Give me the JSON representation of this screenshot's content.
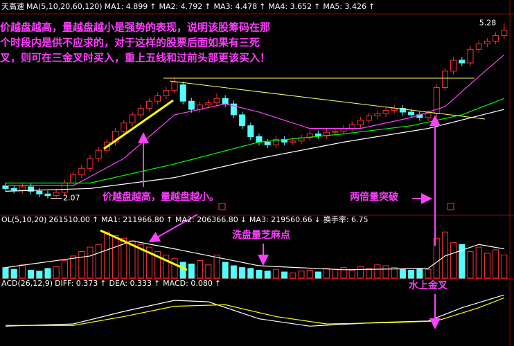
{
  "header": {
    "items": [
      {
        "text": "天高速",
        "color": "#ffffff"
      },
      {
        "text": "MA(5,10,20,60,120)",
        "color": "#ffffff"
      },
      {
        "text": "MA1: 4.899",
        "color": "#ffffff"
      },
      {
        "text": "↑",
        "color": "#ff3232"
      },
      {
        "text": "MA2: 4.792",
        "color": "#ffff00"
      },
      {
        "text": "↑",
        "color": "#ff3232"
      },
      {
        "text": "MA3: 4.478",
        "color": "#ff40ff"
      },
      {
        "text": "↑",
        "color": "#ff3232"
      },
      {
        "text": "MA4: 3.652",
        "color": "#00ff00"
      },
      {
        "text": "↑",
        "color": "#ff3232"
      },
      {
        "text": "MA5: 3.426",
        "color": "#ffffff"
      },
      {
        "text": "↑",
        "color": "#ff3232"
      }
    ]
  },
  "volume_header": {
    "items": [
      {
        "text": "OL(5,10,20)",
        "color": "#ffffff"
      },
      {
        "text": "261510.00",
        "color": "#ffffff"
      },
      {
        "text": "↑",
        "color": "#ff3232"
      },
      {
        "text": "MA1: 211966.80",
        "color": "#ffffff"
      },
      {
        "text": "↑",
        "color": "#ff3232"
      },
      {
        "text": "MA2: 206366.80",
        "color": "#ffff00"
      },
      {
        "text": "↓",
        "color": "#00ff00"
      },
      {
        "text": "MA3: 219560.66",
        "color": "#ff40ff"
      },
      {
        "text": "↓",
        "color": "#00ff00"
      },
      {
        "text": "换手率: 6.75",
        "color": "#ffffff"
      }
    ]
  },
  "macd_header": {
    "items": [
      {
        "text": "ACD(26,12,9)",
        "color": "#ffffff"
      },
      {
        "text": "DIFF: 0.373",
        "color": "#ffffff"
      },
      {
        "text": "↑",
        "color": "#ff3232"
      },
      {
        "text": "DEA: 0.333",
        "color": "#ffff00"
      },
      {
        "text": "↑",
        "color": "#ff3232"
      },
      {
        "text": "MACD: 0.080",
        "color": "#ff40ff"
      },
      {
        "text": "↑",
        "color": "#ff3232"
      }
    ]
  },
  "note": [
    "价越盘越高，量越盘越小是强势的表现，说明该股筹码在那",
    "个时段内是供不应求的，对于这样的股票后面如果有三死",
    "叉，则可在三金叉时买入，重上五线和过前头部更该买入！"
  ],
  "annotations": [
    "价越盘越高，量越盘越小。",
    "两倍量突破",
    "洗盘量芝麻点",
    "水上金叉"
  ],
  "chart_data": [
    {
      "type": "candlestick",
      "ylim": [
        1.9,
        5.45
      ],
      "up_color": "#ff3232",
      "down_color": "#54fcfc",
      "open": [
        2.3,
        2.25,
        2.22,
        2.28,
        2.2,
        2.15,
        2.12,
        2.18,
        2.35,
        2.5,
        2.62,
        2.8,
        2.95,
        3.1,
        3.3,
        3.45,
        3.6,
        3.72,
        3.85,
        3.95,
        4.05,
        4.15,
        3.85,
        3.7,
        3.78,
        3.82,
        3.9,
        3.8,
        3.6,
        3.4,
        3.2,
        3.1,
        3.05,
        3.15,
        3.1,
        3.12,
        3.18,
        3.25,
        3.22,
        3.28,
        3.3,
        3.35,
        3.42,
        3.5,
        3.58,
        3.62,
        3.68,
        3.72,
        3.65,
        3.6,
        3.55,
        3.62,
        4.1,
        4.4,
        4.6,
        4.55,
        4.8,
        4.9,
        4.95,
        5.05
      ],
      "high": [
        2.36,
        2.31,
        2.34,
        2.34,
        2.26,
        2.21,
        2.24,
        2.41,
        2.56,
        2.68,
        2.86,
        3.01,
        3.16,
        3.36,
        3.51,
        3.66,
        3.78,
        3.91,
        4.01,
        4.11,
        4.29,
        4.21,
        3.91,
        3.84,
        3.88,
        3.99,
        3.96,
        3.86,
        3.66,
        3.46,
        3.26,
        3.16,
        3.21,
        3.21,
        3.18,
        3.24,
        3.31,
        3.31,
        3.34,
        3.36,
        3.41,
        3.48,
        3.56,
        3.64,
        3.68,
        3.74,
        3.78,
        3.78,
        3.71,
        3.66,
        3.68,
        4.16,
        4.46,
        4.66,
        4.66,
        4.86,
        4.96,
        5.01,
        5.11,
        5.28
      ],
      "low": [
        2.19,
        2.16,
        2.16,
        2.14,
        2.09,
        2.07,
        2.08,
        2.12,
        2.29,
        2.44,
        2.56,
        2.74,
        2.89,
        3.04,
        3.24,
        3.39,
        3.54,
        3.66,
        3.79,
        3.89,
        3.99,
        3.79,
        3.64,
        3.64,
        3.72,
        3.76,
        3.74,
        3.54,
        3.34,
        3.14,
        3.04,
        2.99,
        2.99,
        3.04,
        3.04,
        3.06,
        3.12,
        3.16,
        3.16,
        3.22,
        3.24,
        3.29,
        3.36,
        3.44,
        3.52,
        3.56,
        3.62,
        3.59,
        3.54,
        3.49,
        3.49,
        3.56,
        4.04,
        4.34,
        4.49,
        4.49,
        4.74,
        4.84,
        4.89,
        4.99
      ],
      "close": [
        2.25,
        2.22,
        2.28,
        2.2,
        2.15,
        2.12,
        2.18,
        2.35,
        2.5,
        2.62,
        2.8,
        2.95,
        3.1,
        3.3,
        3.45,
        3.6,
        3.72,
        3.85,
        3.95,
        4.05,
        4.2,
        3.85,
        3.7,
        3.78,
        3.82,
        3.9,
        3.8,
        3.6,
        3.4,
        3.2,
        3.1,
        3.05,
        3.15,
        3.1,
        3.12,
        3.18,
        3.25,
        3.22,
        3.28,
        3.3,
        3.35,
        3.42,
        3.5,
        3.58,
        3.62,
        3.68,
        3.72,
        3.65,
        3.6,
        3.55,
        3.62,
        4.1,
        4.4,
        4.6,
        4.55,
        4.8,
        4.9,
        4.95,
        5.05,
        5.15
      ],
      "lines": [
        {
          "color": "#ff40ff",
          "x": [
            0,
            8,
            14,
            20,
            26,
            30,
            36,
            42,
            48,
            52,
            56,
            59
          ],
          "values": [
            2.3,
            2.3,
            2.8,
            3.6,
            3.8,
            3.65,
            3.35,
            3.35,
            3.55,
            3.75,
            4.3,
            4.7
          ]
        },
        {
          "color": "#00ff00",
          "x": [
            0,
            10,
            20,
            30,
            40,
            48,
            54,
            59
          ],
          "values": [
            2.35,
            2.35,
            2.7,
            3.1,
            3.25,
            3.4,
            3.6,
            3.9
          ]
        },
        {
          "color": "#ffffff",
          "x": [
            0,
            10,
            20,
            30,
            40,
            50,
            59
          ],
          "values": [
            2.2,
            2.25,
            2.45,
            2.8,
            3.1,
            3.35,
            3.7
          ]
        }
      ],
      "high_mark": 5.28,
      "low_mark": 2.07
    },
    {
      "type": "bar",
      "ylim": [
        0,
        600000
      ],
      "values": [
        120000,
        100000,
        150000,
        90000,
        80000,
        110000,
        130000,
        200000,
        250000,
        300000,
        350000,
        380000,
        520000,
        480000,
        450000,
        420000,
        380000,
        350000,
        300000,
        260000,
        220000,
        180000,
        160000,
        200000,
        150000,
        260000,
        180000,
        140000,
        120000,
        110000,
        90000,
        80000,
        100000,
        70000,
        60000,
        80000,
        90000,
        70000,
        110000,
        100000,
        120000,
        90000,
        130000,
        110000,
        150000,
        140000,
        120000,
        100000,
        90000,
        110000,
        100000,
        450000,
        520000,
        400000,
        380000,
        300000,
        350000,
        280000,
        320000,
        261510
      ],
      "lines": [
        {
          "color": "#ffffff",
          "x": [
            0,
            10,
            15,
            20,
            30,
            40,
            50,
            52,
            56,
            59
          ],
          "values": [
            120000,
            250000,
            420000,
            330000,
            140000,
            95000,
            110000,
            250000,
            380000,
            330000
          ]
        }
      ]
    },
    {
      "type": "line",
      "ylim": [
        -0.3,
        0.45
      ],
      "series": [
        {
          "color": "#ffffff",
          "x": [
            0,
            8,
            14,
            20,
            24,
            30,
            36,
            44,
            50,
            54,
            59
          ],
          "values": [
            -0.05,
            -0.02,
            0.15,
            0.3,
            0.28,
            0.05,
            -0.05,
            0.0,
            0.02,
            0.2,
            0.373
          ]
        },
        {
          "color": "#ffff00",
          "x": [
            0,
            8,
            14,
            20,
            26,
            32,
            38,
            46,
            51,
            56,
            59
          ],
          "values": [
            -0.04,
            -0.04,
            0.08,
            0.22,
            0.24,
            0.08,
            -0.02,
            0.0,
            0.02,
            0.2,
            0.333
          ]
        }
      ]
    }
  ]
}
